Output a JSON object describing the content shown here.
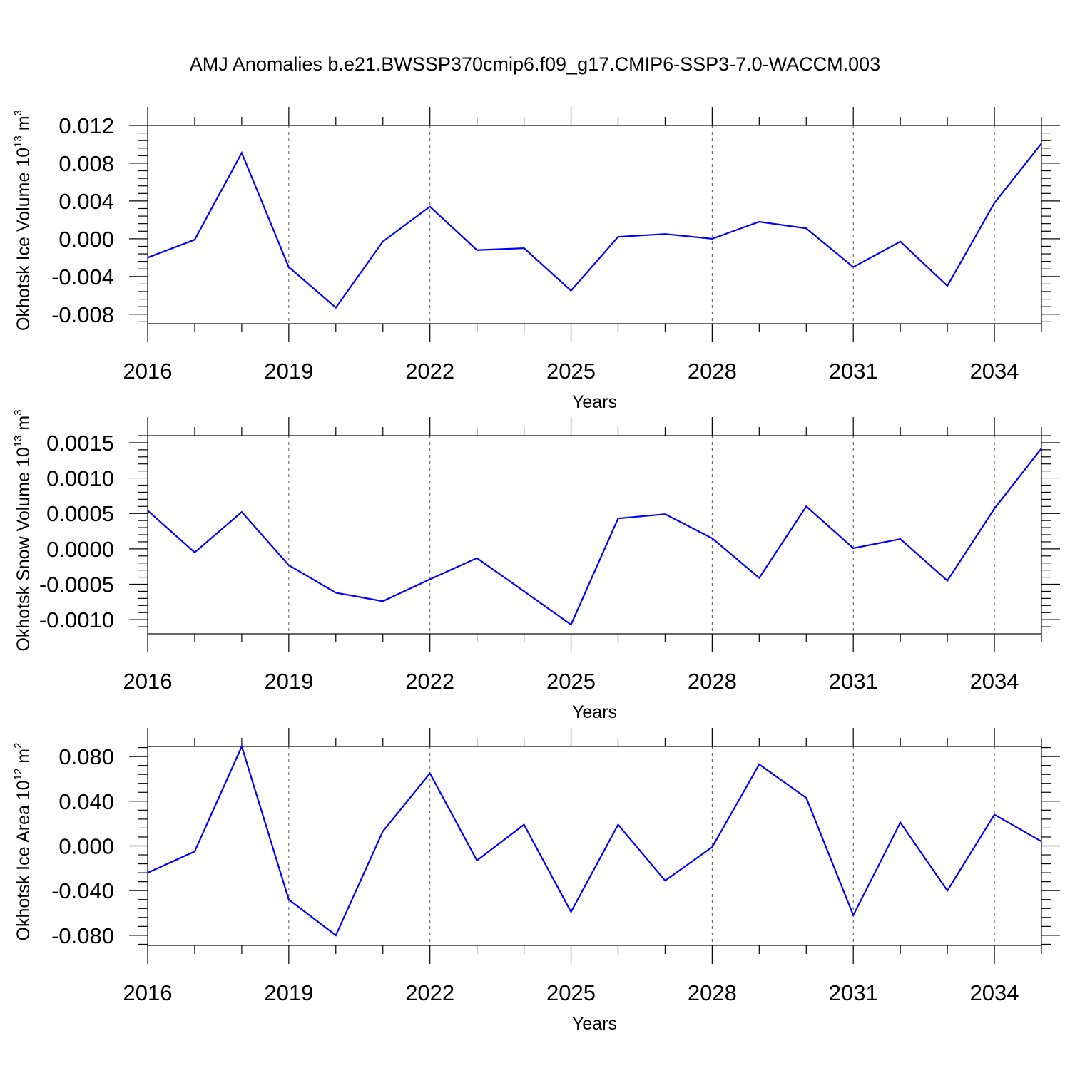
{
  "title": "AMJ Anomalies b.e21.BWSSP370cmip6.f09_g17.CMIP6-SSP3-7.0-WACCM.003",
  "colors": {
    "series": "#0000ff",
    "axes": "#000000",
    "grid": "#555555"
  },
  "chart_data": [
    {
      "type": "line",
      "xlabel": "Years",
      "ylabel": {
        "text": "Okhotsk Ice Volume 10",
        "exp": "13",
        "unit": " m",
        "unit_exp": "3"
      },
      "x": [
        2016,
        2017,
        2018,
        2019,
        2020,
        2021,
        2022,
        2023,
        2024,
        2025,
        2026,
        2027,
        2028,
        2029,
        2030,
        2031,
        2032,
        2033,
        2034,
        2035
      ],
      "values": [
        -0.002,
        -0.0001,
        0.0091,
        -0.003,
        -0.0073,
        -0.0003,
        0.0034,
        -0.0012,
        -0.001,
        -0.0055,
        0.0002,
        0.0005,
        0.0,
        0.0018,
        0.0011,
        -0.003,
        -0.0003,
        -0.005,
        0.0038,
        0.0101
      ],
      "xlim": [
        2016,
        2035
      ],
      "ylim": [
        -0.009,
        0.012
      ],
      "xticks": [
        2016,
        2019,
        2022,
        2025,
        2028,
        2031,
        2034
      ],
      "xtick_labels": [
        "2016",
        "2019",
        "2022",
        "2025",
        "2028",
        "2031",
        "2034"
      ],
      "yticks": [
        -0.008,
        -0.004,
        0.0,
        0.004,
        0.008,
        0.012
      ],
      "ytick_labels": [
        "-0.008",
        "-0.004",
        "0.000",
        "0.004",
        "0.008",
        "0.012"
      ],
      "grid": "vertical dashed at major x ticks"
    },
    {
      "type": "line",
      "xlabel": "Years",
      "ylabel": {
        "text": "Okhotsk Snow Volume 10",
        "exp": "13",
        "unit": " m",
        "unit_exp": "3"
      },
      "x": [
        2016,
        2017,
        2018,
        2019,
        2020,
        2021,
        2022,
        2023,
        2024,
        2025,
        2026,
        2027,
        2028,
        2029,
        2030,
        2031,
        2032,
        2033,
        2034,
        2035
      ],
      "values": [
        0.00054,
        -5e-05,
        0.00052,
        -0.00023,
        -0.00062,
        -0.00074,
        -0.00043,
        -0.00013,
        -0.0006,
        -0.00107,
        0.00043,
        0.00049,
        0.00015,
        -0.00041,
        0.0006,
        1e-05,
        0.00014,
        -0.00045,
        0.00057,
        0.00142
      ],
      "xlim": [
        2016,
        2035
      ],
      "ylim": [
        -0.0012,
        0.0016
      ],
      "xticks": [
        2016,
        2019,
        2022,
        2025,
        2028,
        2031,
        2034
      ],
      "xtick_labels": [
        "2016",
        "2019",
        "2022",
        "2025",
        "2028",
        "2031",
        "2034"
      ],
      "yticks": [
        -0.001,
        -0.0005,
        0.0,
        0.0005,
        0.001,
        0.0015
      ],
      "ytick_labels": [
        "-0.0010",
        "-0.0005",
        "0.0000",
        "0.0005",
        "0.0010",
        "0.0015"
      ],
      "grid": "vertical dashed at major x ticks"
    },
    {
      "type": "line",
      "xlabel": "Years",
      "ylabel": {
        "text": "Okhotsk Ice Area 10",
        "exp": "12",
        "unit": " m",
        "unit_exp": "2"
      },
      "x": [
        2016,
        2017,
        2018,
        2019,
        2020,
        2021,
        2022,
        2023,
        2024,
        2025,
        2026,
        2027,
        2028,
        2029,
        2030,
        2031,
        2032,
        2033,
        2034,
        2035
      ],
      "values": [
        -0.024,
        -0.005,
        0.089,
        -0.048,
        -0.08,
        0.013,
        0.065,
        -0.013,
        0.019,
        -0.059,
        0.019,
        -0.031,
        -0.001,
        0.073,
        0.043,
        -0.062,
        0.021,
        -0.04,
        0.028,
        0.004
      ],
      "xlim": [
        2016,
        2035
      ],
      "ylim": [
        -0.089,
        0.089
      ],
      "xticks": [
        2016,
        2019,
        2022,
        2025,
        2028,
        2031,
        2034
      ],
      "xtick_labels": [
        "2016",
        "2019",
        "2022",
        "2025",
        "2028",
        "2031",
        "2034"
      ],
      "yticks": [
        -0.08,
        -0.04,
        0.0,
        0.04,
        0.08
      ],
      "ytick_labels": [
        "-0.080",
        "-0.040",
        "0.000",
        "0.040",
        "0.080"
      ],
      "grid": "vertical dashed at major x ticks"
    }
  ]
}
